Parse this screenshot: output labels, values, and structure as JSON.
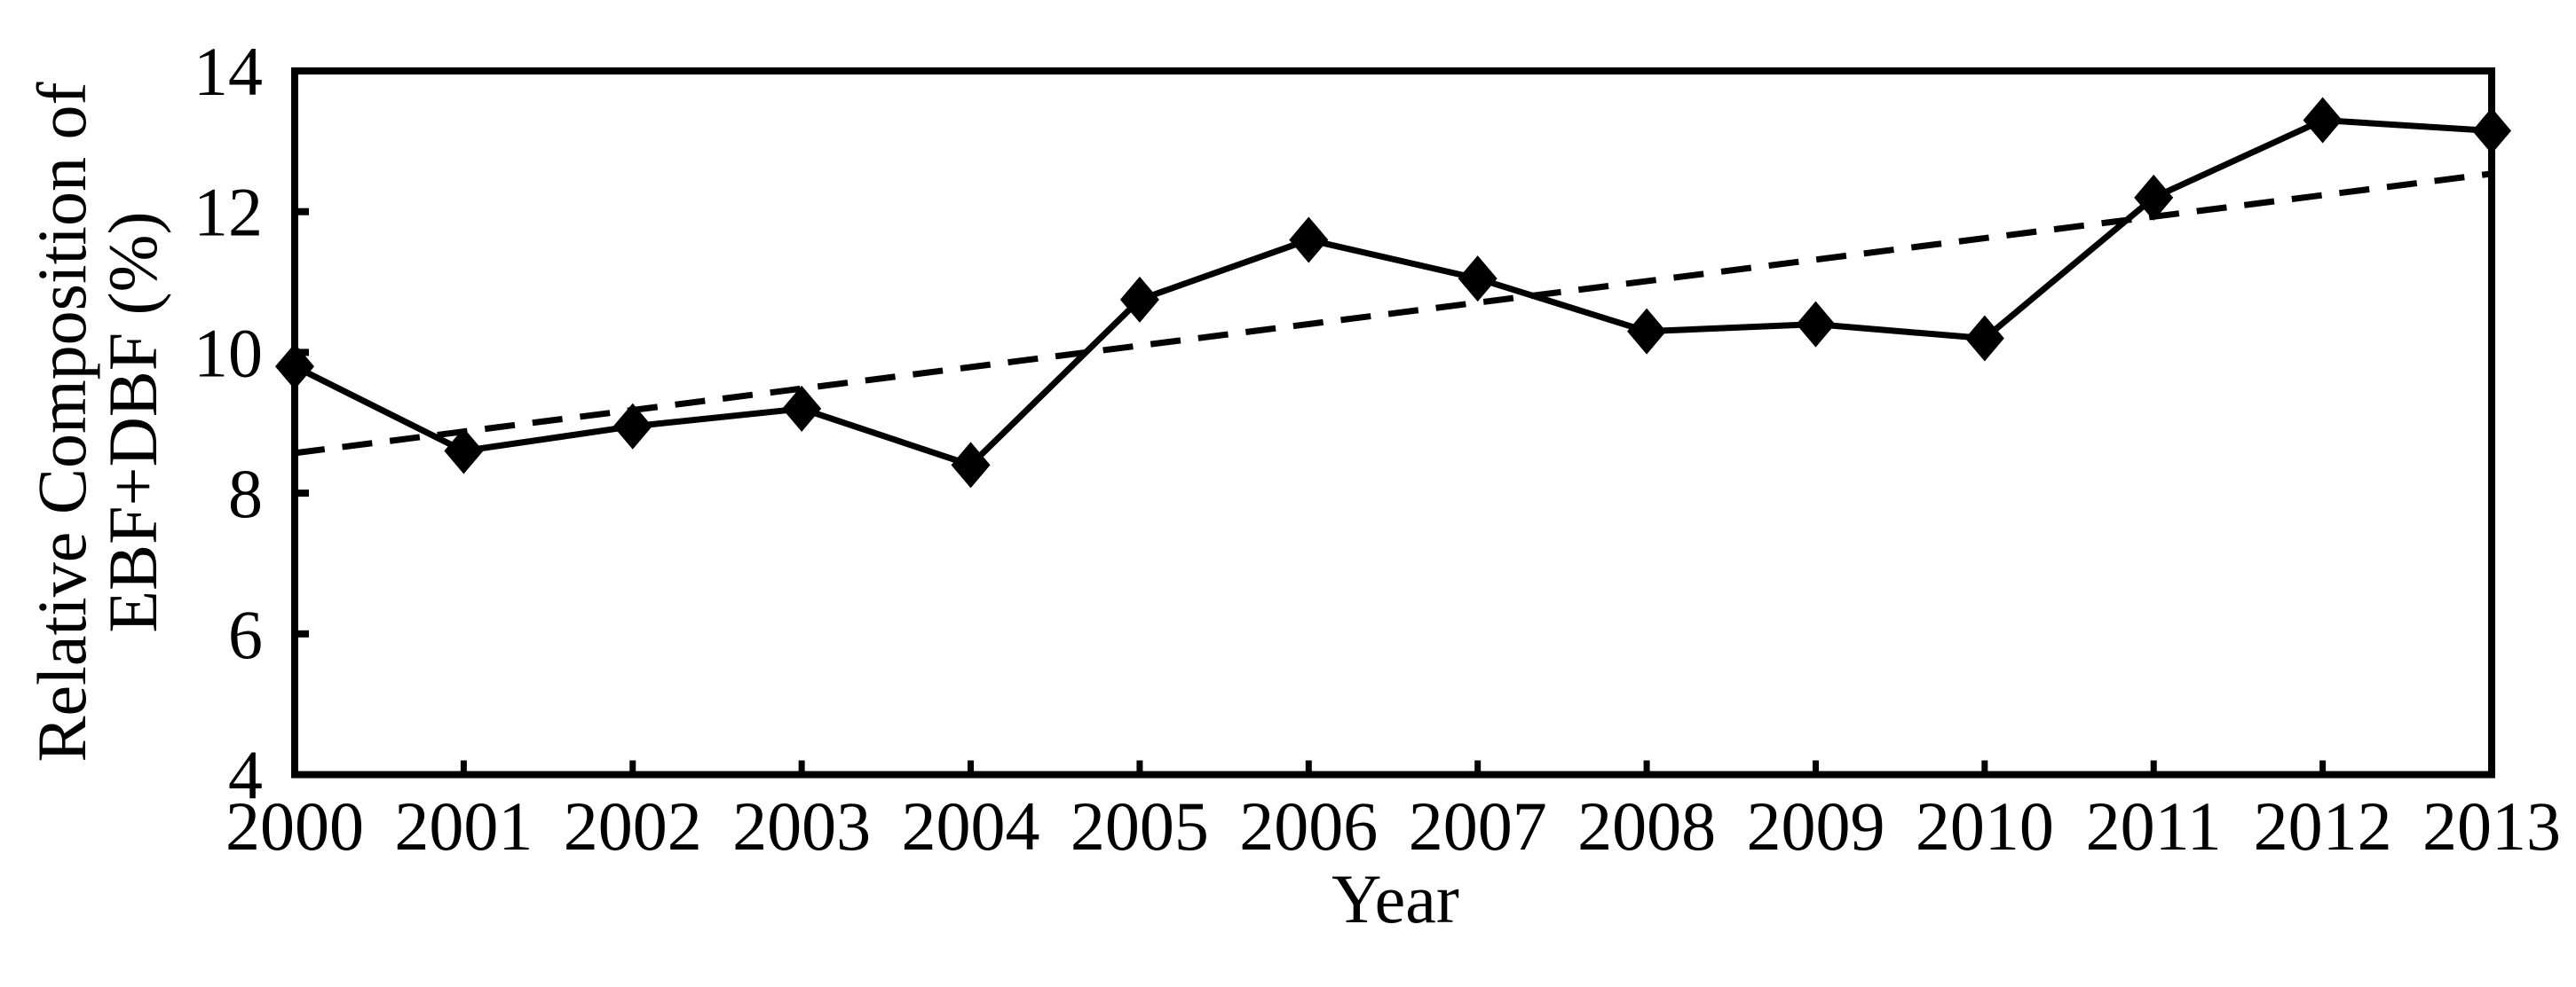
{
  "colors": {
    "background": "#ffffff",
    "ink": "#000000"
  },
  "chart_data": {
    "type": "line",
    "title": "",
    "xlabel": "Year",
    "ylabel": "Relative Composition of EBF+DBF (%)",
    "ylabel_lines": [
      "Relative Composition of",
      "EBF+DBF (%)"
    ],
    "xlim": [
      2000,
      2013
    ],
    "ylim": [
      4,
      14
    ],
    "yticks": [
      4,
      6,
      8,
      10,
      12,
      14
    ],
    "categories": [
      2000,
      2001,
      2002,
      2003,
      2004,
      2005,
      2006,
      2007,
      2008,
      2009,
      2010,
      2011,
      2012,
      2013
    ],
    "grid": false,
    "legend": "none",
    "frame": "box",
    "tick_direction": "in",
    "series": [
      {
        "name": "Relative composition of EBF+DBF",
        "type": "line+marker",
        "marker": "diamond",
        "line_style": "solid",
        "color": "#000000",
        "values": [
          9.8,
          8.6,
          8.95,
          9.2,
          8.4,
          10.75,
          11.6,
          11.05,
          10.3,
          10.4,
          10.2,
          12.2,
          13.3,
          13.15
        ]
      },
      {
        "name": "Linear trendline",
        "type": "trendline",
        "marker": "none",
        "line_style": "dashed",
        "color": "#000000",
        "x_range": [
          2000,
          2013
        ],
        "value_range": [
          8.57,
          12.54
        ],
        "slope_per_year": 0.305
      }
    ]
  }
}
